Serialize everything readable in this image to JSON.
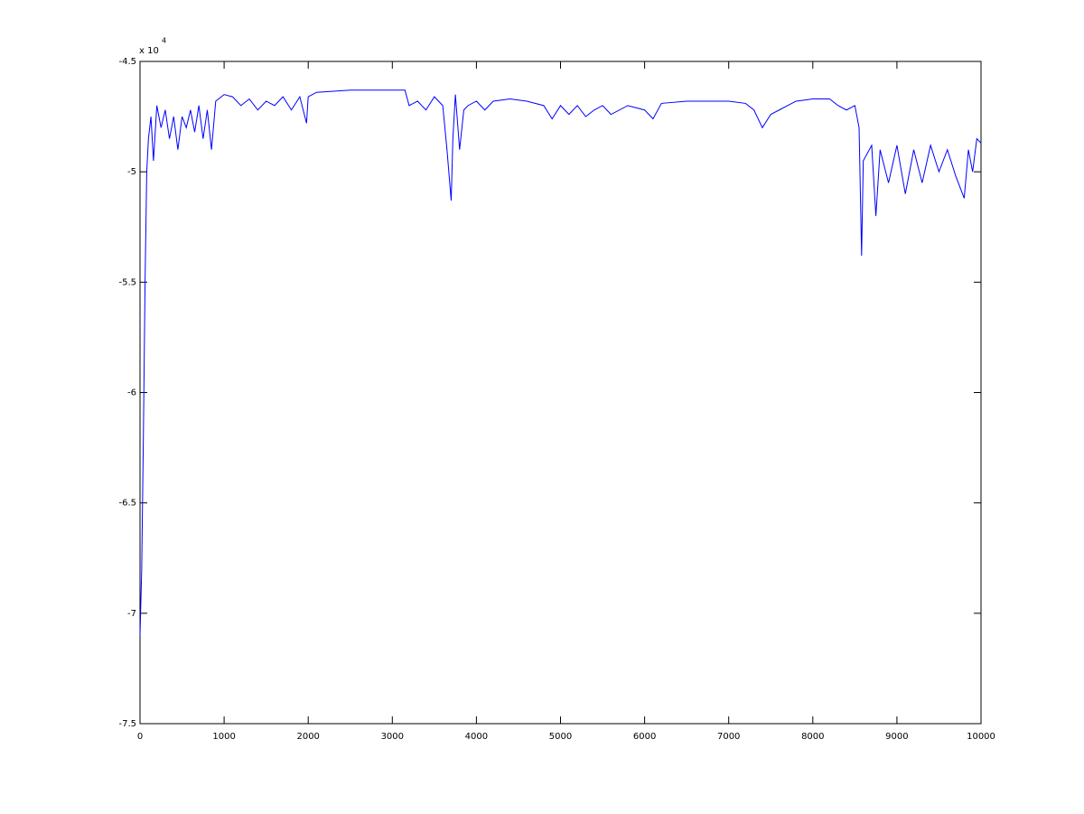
{
  "chart_data": {
    "type": "line",
    "y_multiplier": {
      "base": "x 10",
      "exponent": "4"
    },
    "x": [
      0,
      20,
      40,
      60,
      80,
      100,
      130,
      160,
      200,
      250,
      300,
      350,
      400,
      450,
      500,
      550,
      600,
      650,
      700,
      750,
      800,
      850,
      900,
      1000,
      1100,
      1200,
      1300,
      1400,
      1500,
      1600,
      1700,
      1800,
      1900,
      1980,
      2000,
      2100,
      2500,
      3000,
      3150,
      3200,
      3300,
      3400,
      3500,
      3600,
      3650,
      3700,
      3720,
      3750,
      3800,
      3850,
      3900,
      4000,
      4100,
      4200,
      4400,
      4600,
      4800,
      4900,
      5000,
      5100,
      5200,
      5300,
      5400,
      5500,
      5600,
      5800,
      6000,
      6100,
      6200,
      6500,
      7000,
      7200,
      7300,
      7400,
      7500,
      7600,
      7800,
      8000,
      8200,
      8300,
      8400,
      8500,
      8550,
      8580,
      8600,
      8700,
      8750,
      8800,
      8900,
      9000,
      9100,
      9200,
      9300,
      9400,
      9500,
      9600,
      9700,
      9800,
      9850,
      9900,
      9950,
      10000
    ],
    "series": [
      {
        "color": "#0000ff",
        "values": [
          -7.1,
          -6.8,
          -6.2,
          -5.5,
          -5.0,
          -4.85,
          -4.75,
          -4.95,
          -4.7,
          -4.8,
          -4.72,
          -4.85,
          -4.75,
          -4.9,
          -4.75,
          -4.8,
          -4.72,
          -4.82,
          -4.7,
          -4.85,
          -4.72,
          -4.9,
          -4.68,
          -4.65,
          -4.66,
          -4.7,
          -4.67,
          -4.72,
          -4.68,
          -4.7,
          -4.66,
          -4.72,
          -4.66,
          -4.78,
          -4.66,
          -4.64,
          -4.63,
          -4.63,
          -4.63,
          -4.7,
          -4.68,
          -4.72,
          -4.66,
          -4.7,
          -4.9,
          -5.13,
          -4.85,
          -4.65,
          -4.9,
          -4.72,
          -4.7,
          -4.68,
          -4.72,
          -4.68,
          -4.67,
          -4.68,
          -4.7,
          -4.76,
          -4.7,
          -4.74,
          -4.7,
          -4.75,
          -4.72,
          -4.7,
          -4.74,
          -4.7,
          -4.72,
          -4.76,
          -4.69,
          -4.68,
          -4.68,
          -4.69,
          -4.72,
          -4.8,
          -4.74,
          -4.72,
          -4.68,
          -4.67,
          -4.67,
          -4.7,
          -4.72,
          -4.7,
          -4.8,
          -5.38,
          -4.95,
          -4.88,
          -5.2,
          -4.9,
          -5.05,
          -4.88,
          -5.1,
          -4.9,
          -5.05,
          -4.88,
          -5.0,
          -4.9,
          -5.02,
          -5.12,
          -4.9,
          -5.0,
          -4.85,
          -4.87
        ]
      }
    ],
    "xlim": [
      0,
      10000
    ],
    "xticks": [
      0,
      1000,
      2000,
      3000,
      4000,
      5000,
      6000,
      7000,
      8000,
      9000,
      10000
    ],
    "ylim": [
      -7.5,
      -4.5
    ],
    "yticks": [
      -7.5,
      -7,
      -6.5,
      -6,
      -5.5,
      -5,
      -4.5
    ]
  }
}
